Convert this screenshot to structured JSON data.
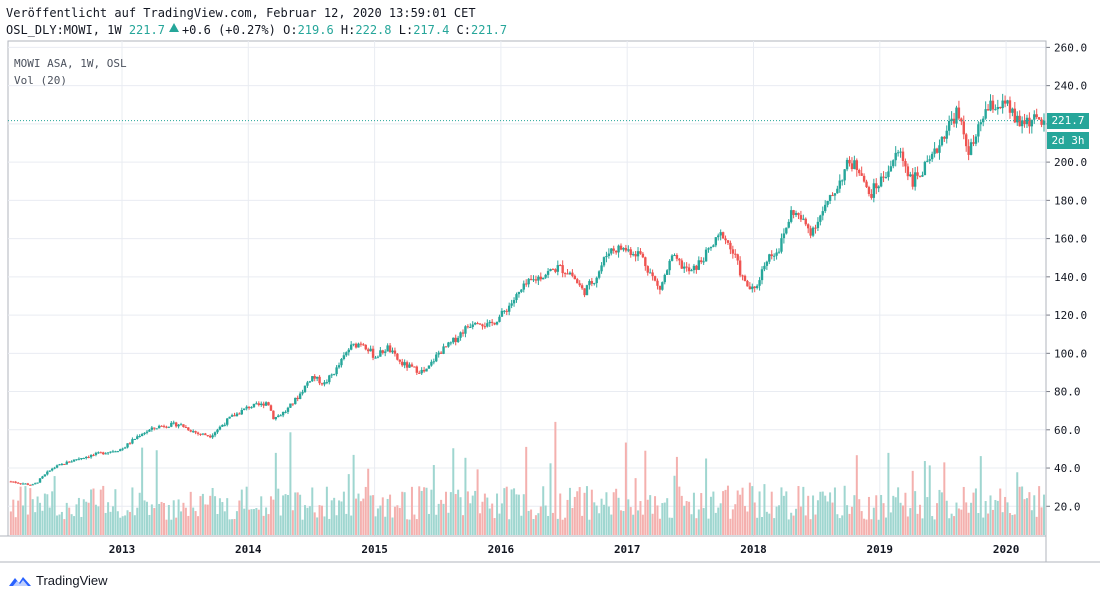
{
  "header": {
    "published": "Veröffentlicht auf TradingView.com, Februar 12, 2020 13:59:01 CET",
    "symbol": "OSL_DLY:MOWI, 1W",
    "last": "221.7",
    "change": "+0.6 (+0.27%)",
    "o_label": "O:",
    "o_value": "219.6",
    "h_label": "H:",
    "h_value": "222.8",
    "l_label": "L:",
    "l_value": "217.4",
    "c_label": "C:",
    "c_value": "221.7"
  },
  "legend": {
    "series": "MOWI ASA, 1W, OSL",
    "volume": "Vol (20)"
  },
  "price_tag": {
    "price": "221.7",
    "countdown": "2d 3h"
  },
  "footer": {
    "brand": "TradingView",
    "logo": "tradingview-logo-icon"
  },
  "colors": {
    "up": "#26a69a",
    "down": "#ef5350",
    "up_vol": "#9fd6d0",
    "down_vol": "#f4b0ae",
    "grid": "#e9ecf2"
  },
  "chart_data": {
    "type": "candlestick",
    "title": "MOWI ASA, 1W, OSL",
    "x_ticks": [
      "2013",
      "2014",
      "2015",
      "2016",
      "2017",
      "2018",
      "2019",
      "2020"
    ],
    "y_ticks": [
      20,
      40,
      60,
      80,
      100,
      120,
      140,
      160,
      180,
      200,
      220,
      240,
      260
    ],
    "ylim": [
      5,
      262
    ],
    "last_price": 221.7,
    "x_range": [
      2012.12,
      2020.3
    ],
    "price_path": [
      [
        2012.12,
        33
      ],
      [
        2012.3,
        31
      ],
      [
        2012.45,
        40
      ],
      [
        2012.65,
        45
      ],
      [
        2012.85,
        48
      ],
      [
        2013.0,
        50
      ],
      [
        2013.15,
        58
      ],
      [
        2013.3,
        62
      ],
      [
        2013.45,
        63
      ],
      [
        2013.6,
        58
      ],
      [
        2013.7,
        57
      ],
      [
        2013.85,
        66
      ],
      [
        2014.0,
        72
      ],
      [
        2014.1,
        73
      ],
      [
        2014.15,
        75
      ],
      [
        2014.2,
        66
      ],
      [
        2014.3,
        70
      ],
      [
        2014.4,
        78
      ],
      [
        2014.5,
        88
      ],
      [
        2014.6,
        84
      ],
      [
        2014.7,
        92
      ],
      [
        2014.8,
        103
      ],
      [
        2014.9,
        106
      ],
      [
        2015.0,
        98
      ],
      [
        2015.1,
        103
      ],
      [
        2015.2,
        95
      ],
      [
        2015.3,
        92
      ],
      [
        2015.4,
        90
      ],
      [
        2015.5,
        100
      ],
      [
        2015.6,
        105
      ],
      [
        2015.7,
        112
      ],
      [
        2015.8,
        118
      ],
      [
        2015.9,
        114
      ],
      [
        2016.0,
        120
      ],
      [
        2016.1,
        128
      ],
      [
        2016.2,
        136
      ],
      [
        2016.3,
        140
      ],
      [
        2016.45,
        145
      ],
      [
        2016.55,
        142
      ],
      [
        2016.65,
        132
      ],
      [
        2016.75,
        140
      ],
      [
        2016.85,
        154
      ],
      [
        2016.95,
        155
      ],
      [
        2017.1,
        152
      ],
      [
        2017.25,
        133
      ],
      [
        2017.35,
        150
      ],
      [
        2017.5,
        142
      ],
      [
        2017.6,
        150
      ],
      [
        2017.75,
        163
      ],
      [
        2017.85,
        150
      ],
      [
        2017.92,
        137
      ],
      [
        2018.0,
        132
      ],
      [
        2018.1,
        150
      ],
      [
        2018.2,
        155
      ],
      [
        2018.3,
        175
      ],
      [
        2018.45,
        164
      ],
      [
        2018.6,
        180
      ],
      [
        2018.75,
        200
      ],
      [
        2018.85,
        196
      ],
      [
        2018.9,
        182
      ],
      [
        2019.0,
        190
      ],
      [
        2019.15,
        206
      ],
      [
        2019.25,
        190
      ],
      [
        2019.4,
        200
      ],
      [
        2019.5,
        215
      ],
      [
        2019.6,
        226
      ],
      [
        2019.7,
        206
      ],
      [
        2019.75,
        211
      ],
      [
        2019.82,
        226
      ],
      [
        2019.9,
        230
      ],
      [
        2020.0,
        229
      ],
      [
        2020.1,
        219
      ],
      [
        2020.12,
        221.7
      ]
    ]
  }
}
